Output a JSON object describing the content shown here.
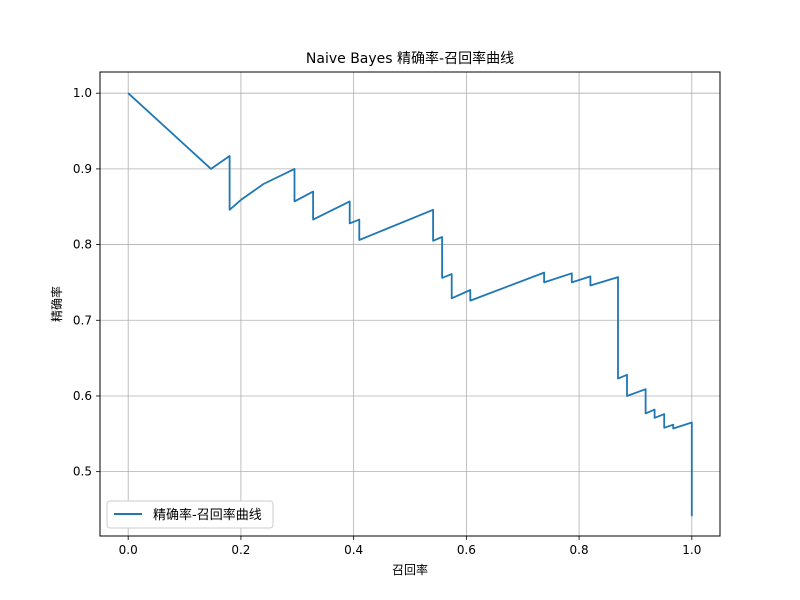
{
  "chart_data": {
    "type": "line",
    "title": "Naive Bayes 精确率-召回率曲线",
    "xlabel": "召回率",
    "ylabel": "精确率",
    "xlim": [
      -0.05,
      1.05
    ],
    "ylim": [
      0.415,
      1.028
    ],
    "xticks": [
      0.0,
      0.2,
      0.4,
      0.6,
      0.8,
      1.0
    ],
    "yticks": [
      0.5,
      0.6,
      0.7,
      0.8,
      0.9,
      1.0
    ],
    "xtick_labels": [
      "0.0",
      "0.2",
      "0.4",
      "0.6",
      "0.8",
      "1.0"
    ],
    "ytick_labels": [
      "0.5",
      "0.6",
      "0.7",
      "0.8",
      "0.9",
      "1.0"
    ],
    "grid": true,
    "legend_position": "lower-left",
    "series": [
      {
        "name": "精确率-召回率曲线",
        "color": "#1f77b4",
        "x": [
          0.0,
          0.147,
          0.18,
          0.18,
          0.2,
          0.24,
          0.295,
          0.295,
          0.328,
          0.328,
          0.393,
          0.393,
          0.41,
          0.41,
          0.541,
          0.541,
          0.557,
          0.557,
          0.574,
          0.574,
          0.607,
          0.607,
          0.738,
          0.738,
          0.787,
          0.787,
          0.82,
          0.82,
          0.869,
          0.869,
          0.885,
          0.885,
          0.918,
          0.918,
          0.934,
          0.934,
          0.951,
          0.951,
          0.967,
          0.967,
          1.0,
          1.0
        ],
        "y": [
          1.0,
          0.9,
          0.917,
          0.846,
          0.859,
          0.88,
          0.9,
          0.857,
          0.87,
          0.833,
          0.857,
          0.828,
          0.833,
          0.806,
          0.846,
          0.805,
          0.81,
          0.756,
          0.761,
          0.729,
          0.74,
          0.726,
          0.763,
          0.75,
          0.762,
          0.75,
          0.758,
          0.746,
          0.757,
          0.623,
          0.628,
          0.6,
          0.609,
          0.577,
          0.582,
          0.571,
          0.576,
          0.558,
          0.562,
          0.557,
          0.565,
          0.441
        ]
      }
    ]
  }
}
